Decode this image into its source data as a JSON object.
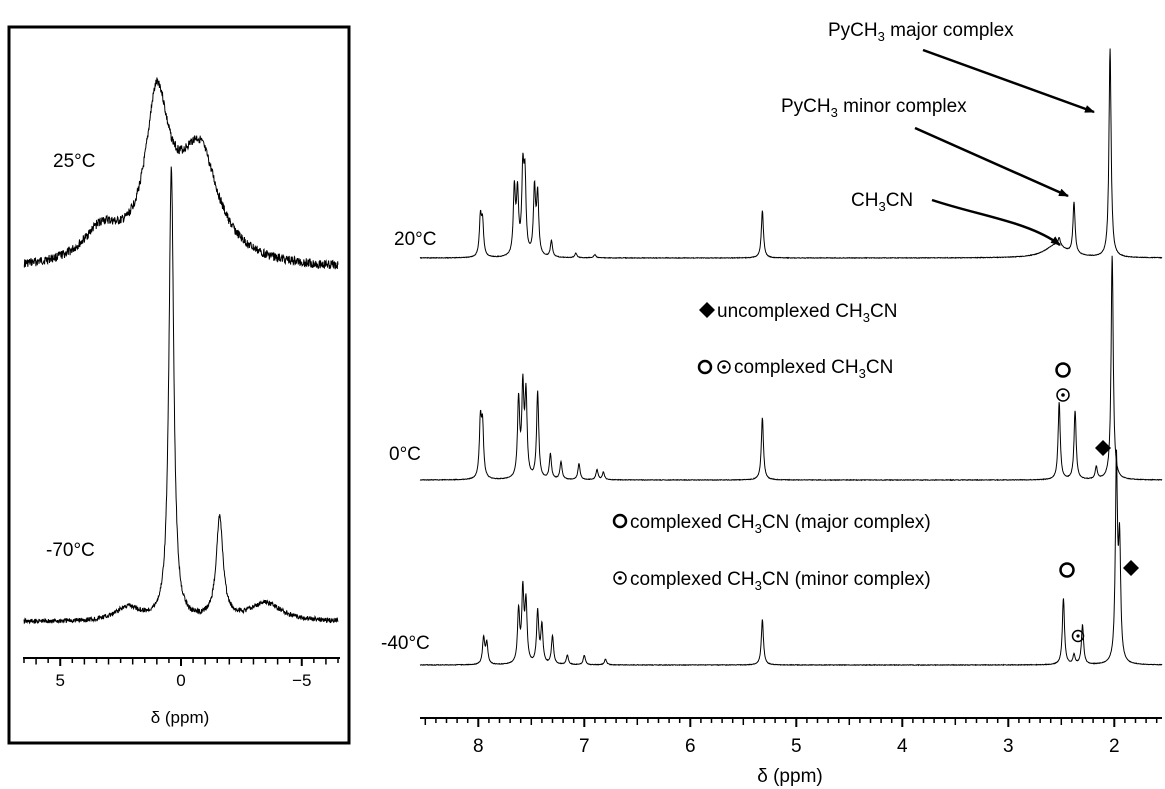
{
  "chart_data": [
    {
      "type": "line",
      "panel": "left",
      "xlabel": "δ (ppm)",
      "xlim": [
        6.5,
        -6.5
      ],
      "x_reversed": true,
      "x_ticks": [
        "5",
        "0",
        "−5"
      ],
      "x_tick_values": [
        5,
        0,
        -5
      ],
      "grid": false,
      "series": [
        {
          "name": "25°C",
          "peaks": [
            {
              "x": 3.3,
              "height": 0.14,
              "width": 0.9
            },
            {
              "x": 1.0,
              "height": 0.62,
              "width": 0.55
            },
            {
              "x": -0.8,
              "height": 0.42,
              "width": 0.9
            },
            {
              "x": 0.2,
              "height": 0.15,
              "width": 1.4
            }
          ]
        },
        {
          "name": "-70°C",
          "peaks": [
            {
              "x": 2.2,
              "height": 0.03,
              "width": 0.6
            },
            {
              "x": 0.4,
              "height": 0.98,
              "width": 0.12
            },
            {
              "x": -1.6,
              "height": 0.22,
              "width": 0.17
            },
            {
              "x": -3.5,
              "height": 0.04,
              "width": 0.8
            }
          ]
        }
      ]
    },
    {
      "type": "line",
      "panel": "right",
      "xlabel": "δ (ppm)",
      "xlim": [
        8.55,
        1.55
      ],
      "x_reversed": true,
      "x_ticks": [
        "8",
        "7",
        "6",
        "5",
        "4",
        "3",
        "2"
      ],
      "x_tick_values": [
        8,
        7,
        6,
        5,
        4,
        3,
        2
      ],
      "grid": false,
      "series": [
        {
          "name": "20°C",
          "peaks": [
            {
              "x": 7.98,
              "height": 0.35
            },
            {
              "x": 7.96,
              "height": 0.3
            },
            {
              "x": 7.66,
              "height": 0.6
            },
            {
              "x": 7.63,
              "height": 0.55
            },
            {
              "x": 7.58,
              "height": 0.72
            },
            {
              "x": 7.56,
              "height": 0.66
            },
            {
              "x": 7.47,
              "height": 0.6
            },
            {
              "x": 7.44,
              "height": 0.55
            },
            {
              "x": 7.31,
              "height": 0.15
            },
            {
              "x": 7.08,
              "height": 0.04
            },
            {
              "x": 6.9,
              "height": 0.03
            },
            {
              "x": 5.32,
              "height": 0.43
            },
            {
              "x": 2.52,
              "height": 0.07
            },
            {
              "x": 2.38,
              "height": 0.47
            },
            {
              "x": 2.04,
              "height": 1.9
            }
          ]
        },
        {
          "name": "0°C",
          "peaks": [
            {
              "x": 7.98,
              "height": 0.45
            },
            {
              "x": 7.96,
              "height": 0.4
            },
            {
              "x": 7.62,
              "height": 0.62
            },
            {
              "x": 7.58,
              "height": 0.7
            },
            {
              "x": 7.55,
              "height": 0.65
            },
            {
              "x": 7.44,
              "height": 0.7
            },
            {
              "x": 7.32,
              "height": 0.2
            },
            {
              "x": 7.22,
              "height": 0.14
            },
            {
              "x": 7.05,
              "height": 0.13
            },
            {
              "x": 6.88,
              "height": 0.08
            },
            {
              "x": 6.82,
              "height": 0.06
            },
            {
              "x": 5.32,
              "height": 0.5
            },
            {
              "x": 2.52,
              "height": 0.62
            },
            {
              "x": 2.37,
              "height": 0.55
            },
            {
              "x": 2.17,
              "height": 0.1
            },
            {
              "x": 2.02,
              "height": 1.8
            }
          ]
        },
        {
          "name": "-40°C",
          "peaks": [
            {
              "x": 7.95,
              "height": 0.28
            },
            {
              "x": 7.92,
              "height": 0.22
            },
            {
              "x": 7.62,
              "height": 0.55
            },
            {
              "x": 7.58,
              "height": 0.75
            },
            {
              "x": 7.55,
              "height": 0.62
            },
            {
              "x": 7.44,
              "height": 0.55
            },
            {
              "x": 7.4,
              "height": 0.4
            },
            {
              "x": 7.3,
              "height": 0.3
            },
            {
              "x": 7.16,
              "height": 0.1
            },
            {
              "x": 7.0,
              "height": 0.1
            },
            {
              "x": 6.8,
              "height": 0.06
            },
            {
              "x": 5.32,
              "height": 0.48
            },
            {
              "x": 2.48,
              "height": 0.7
            },
            {
              "x": 2.38,
              "height": 0.1
            },
            {
              "x": 2.3,
              "height": 0.42
            },
            {
              "x": 1.98,
              "height": 2.1
            },
            {
              "x": 1.95,
              "height": 1.2
            }
          ]
        }
      ]
    }
  ],
  "text": {
    "left_temp_top": "25°C",
    "left_temp_bottom": "-70°C",
    "left_xlabel": "δ (ppm)",
    "right_xlabel": "δ (ppm)",
    "right_temp_top": "20°C",
    "right_temp_mid": "0°C",
    "right_temp_bot": "-40°C",
    "pych3_major_pre": "PyCH",
    "pych3_major_sub": "3",
    "pych3_major_post": " major complex",
    "pych3_minor_pre": "PyCH",
    "pych3_minor_sub": "3",
    "pych3_minor_post": " minor complex",
    "ch3cn_pre": "CH",
    "ch3cn_sub": "3",
    "ch3cn_post": "CN",
    "legend1_pre": " uncomplexed CH",
    "legend1_sub": "3",
    "legend1_post": "CN",
    "legend2_pre": " complexed CH",
    "legend2_sub": "3",
    "legend2_post": "CN",
    "legend3_pre": " complexed CH",
    "legend3_sub": "3",
    "legend3_post": "CN (major complex)",
    "legend4_pre": " complexed CH",
    "legend4_sub": "3",
    "legend4_post": "CN (minor complex)"
  },
  "colors": {
    "line": "#000000",
    "background": "#ffffff"
  }
}
